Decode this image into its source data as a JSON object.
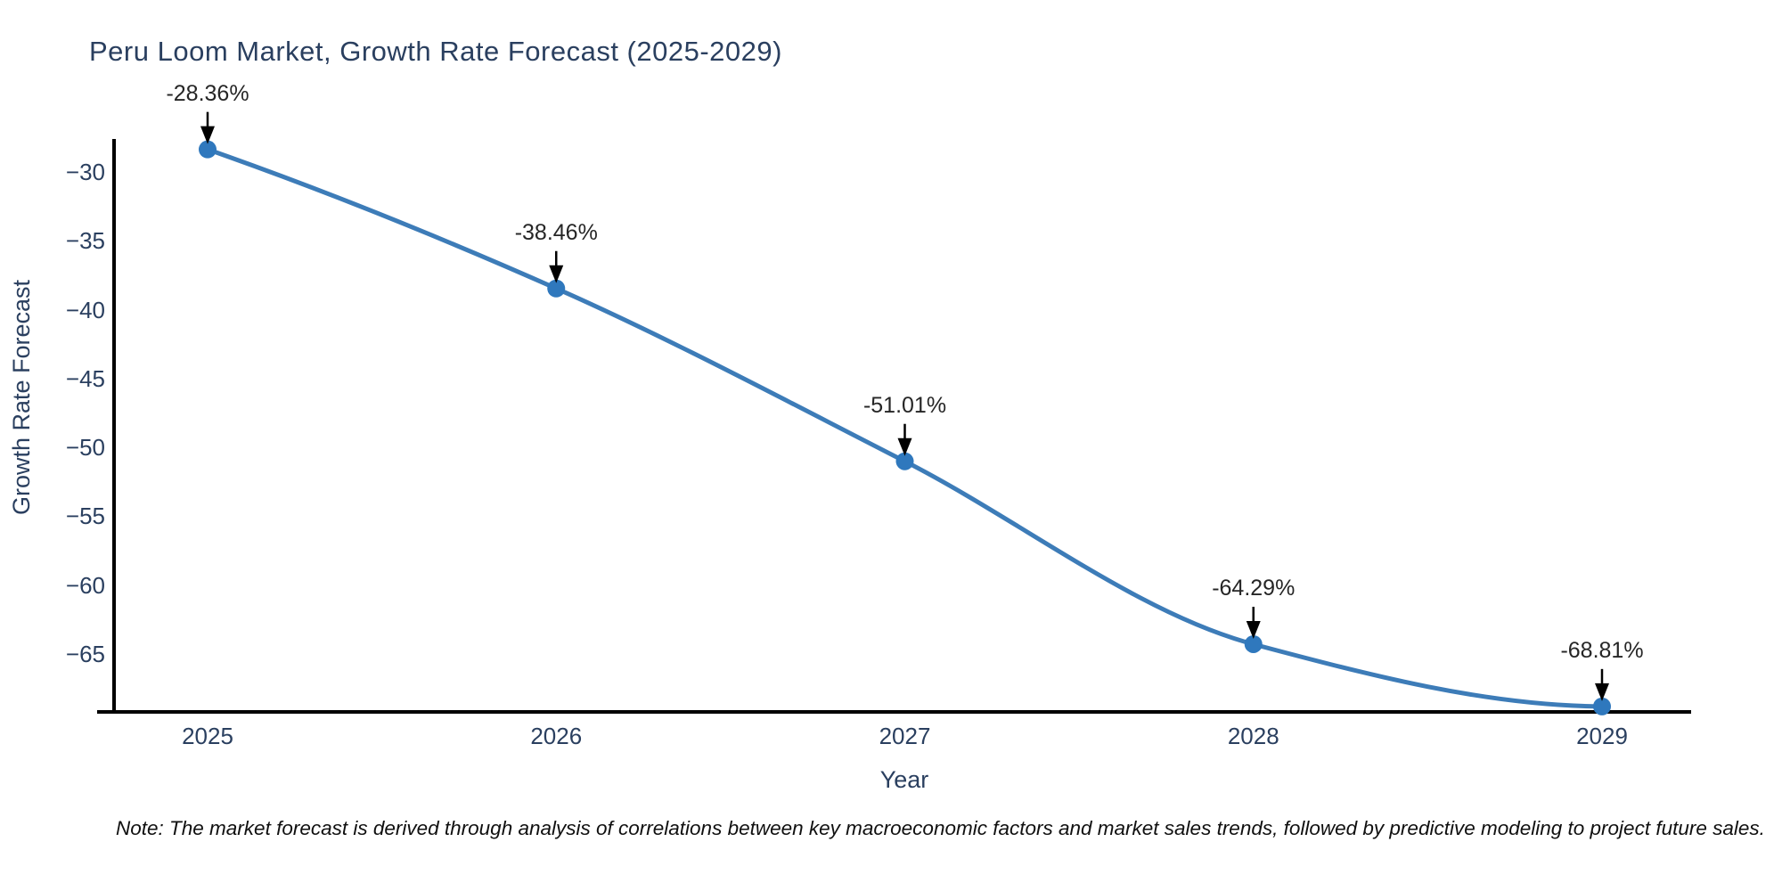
{
  "page": {
    "background": "#ffffff"
  },
  "chart_data": {
    "type": "line",
    "title": "Peru Loom Market, Growth Rate Forecast (2025-2029)",
    "xlabel": "Year",
    "ylabel": "Growth Rate Forecast",
    "categories": [
      2025,
      2026,
      2027,
      2028,
      2029
    ],
    "x_tick_labels": [
      "2025",
      "2026",
      "2027",
      "2028",
      "2029"
    ],
    "series": [
      {
        "name": "Growth Rate Forecast",
        "values": [
          -28.36,
          -38.46,
          -51.01,
          -64.29,
          -68.81
        ]
      }
    ],
    "point_labels": [
      "-28.36%",
      "-38.46%",
      "-51.01%",
      "-64.29%",
      "-68.81%"
    ],
    "y_ticks": [
      -30,
      -35,
      -40,
      -45,
      -50,
      -55,
      -60,
      -65
    ],
    "y_tick_labels": [
      "−30",
      "−35",
      "−40",
      "−45",
      "−50",
      "−55",
      "−60",
      "−65"
    ],
    "ylim": [
      -69.4,
      -27.6
    ],
    "grid": false,
    "legend_position": "none",
    "curve": "smooth-spline",
    "colors": {
      "line": "#3d7cb8",
      "marker": "#2f78bd",
      "axis": "#000000",
      "text": "#2a3f5f",
      "annotation_text": "#262626",
      "arrow": "#000000"
    }
  },
  "note": {
    "text": "Note: The market forecast is derived through analysis of correlations between key macroeconomic factors and market sales trends, followed by predictive modeling to project future sales."
  }
}
